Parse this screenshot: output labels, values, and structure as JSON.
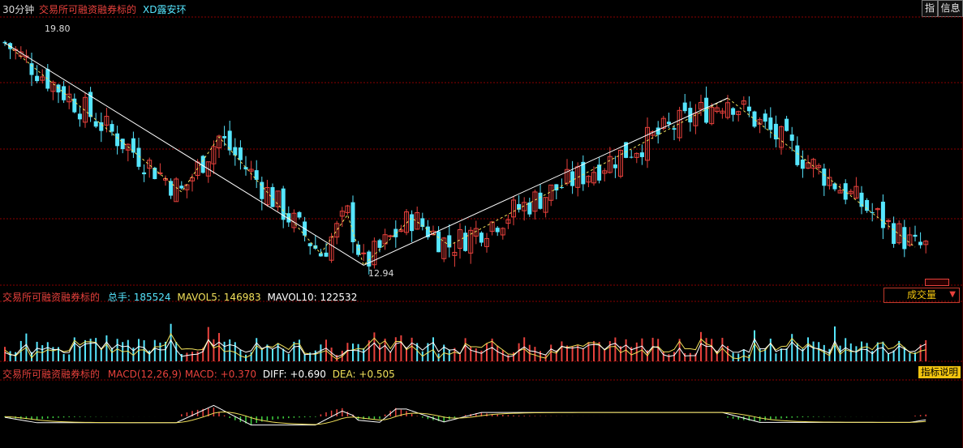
{
  "header": {
    "period": "30分钟",
    "title": "交易所可融资融券标的",
    "stock": "XD露安环"
  },
  "side_buttons": {
    "index": "指",
    "info": "信息"
  },
  "price_panel": {
    "high_label": "19.80",
    "low_label": "12.94"
  },
  "volume_panel": {
    "title": "交易所可融资融券标的",
    "total_label": "总手:",
    "total_value": "185524",
    "mavol5_label": "MAVOL5:",
    "mavol5_value": "146983",
    "mavol10_label": "MAVOL10:",
    "mavol10_value": "122532",
    "dropdown_label": "成交量"
  },
  "macd_panel": {
    "title": "交易所可融资融券标的",
    "params": "MACD(12,26,9)",
    "macd_label": "MACD:",
    "macd_value": "+0.370",
    "diff_label": "DIFF:",
    "diff_value": "+0.690",
    "dea_label": "DEA:",
    "dea_value": "+0.505",
    "help_button": "指标说明"
  },
  "colors": {
    "up": "#e8413c",
    "down": "#56e6ff",
    "grid": "#8b0000",
    "ma_white": "#ffffff",
    "ma_yellow": "#f1e05a",
    "macd_pos": "#e8413c",
    "macd_neg": "#3fd13f"
  },
  "chart_data": {
    "type": "candlestick",
    "zigzag_pivots": [
      {
        "i": 0,
        "price": 19.8
      },
      {
        "i": 33,
        "price": 15.2
      },
      {
        "i": 40,
        "price": 16.9
      },
      {
        "i": 59,
        "price": 13.3
      },
      {
        "i": 64,
        "price": 14.5
      },
      {
        "i": 67,
        "price": 12.94
      },
      {
        "i": 76,
        "price": 14.4
      },
      {
        "i": 83,
        "price": 13.55
      },
      {
        "i": 135,
        "price": 18.1
      },
      {
        "i": 170,
        "price": 13.5
      }
    ],
    "price_range": [
      12.5,
      20.5
    ]
  }
}
